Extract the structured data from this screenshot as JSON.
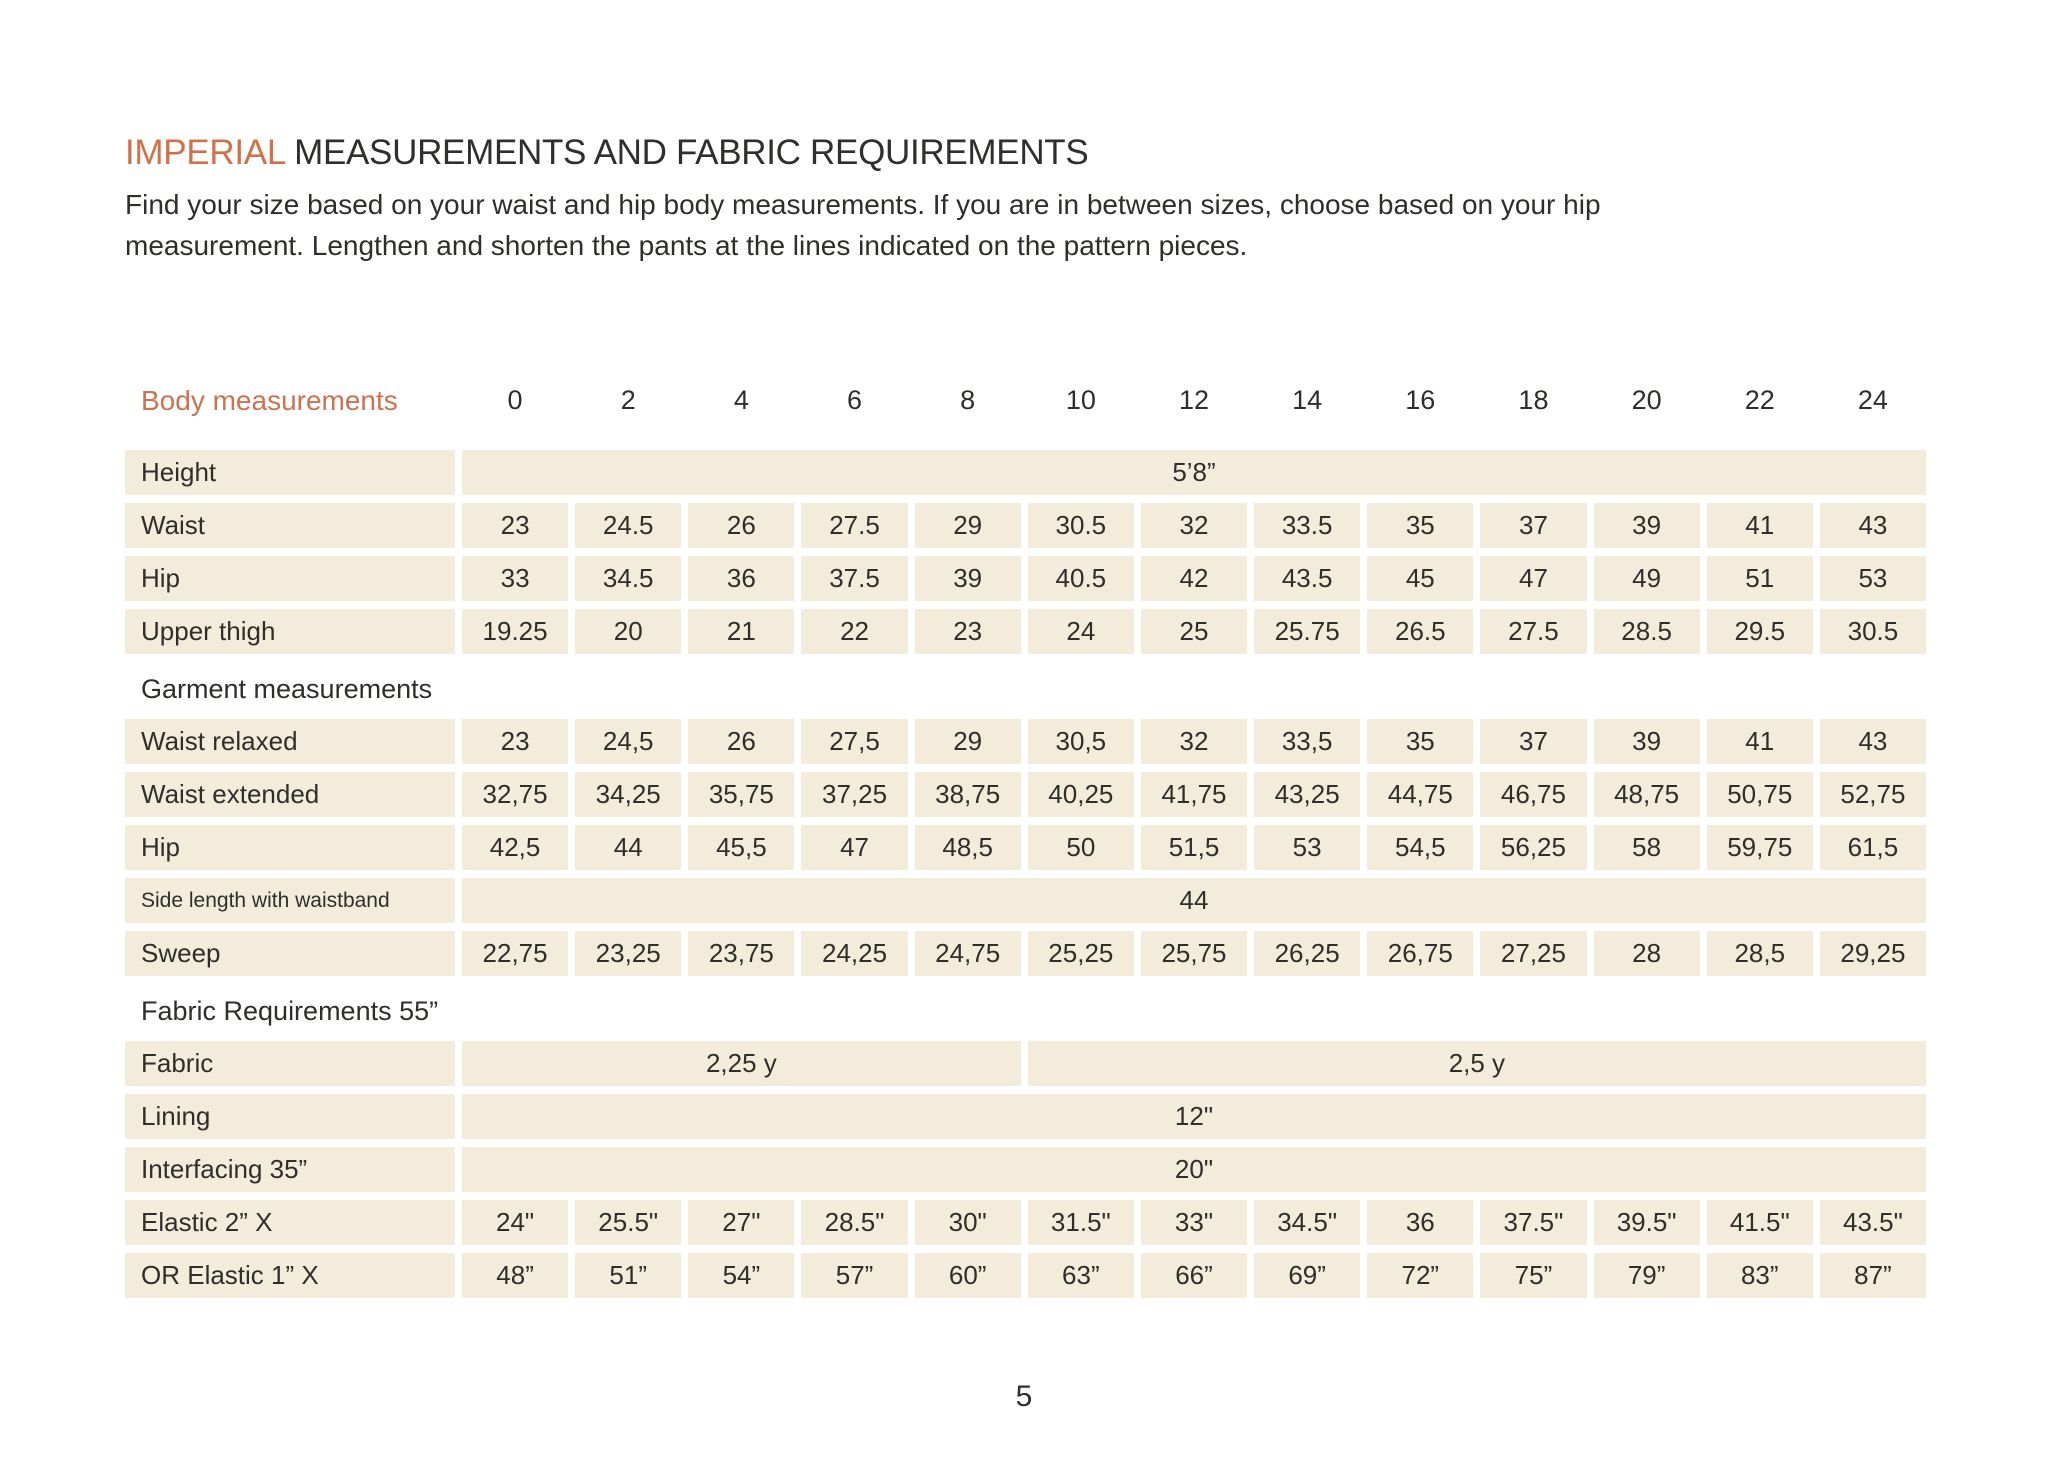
{
  "page": {
    "title_highlight": "IMPERIAL",
    "title_rest": " MEASUREMENTS AND FABRIC REQUIREMENTS",
    "intro_lines": [
      "Find your size based on your waist and hip body measurements. If you are in between sizes, choose based on your hip",
      "measurement. Lengthen and shorten the pants at the lines indicated on the pattern pieces."
    ],
    "page_number": "5"
  },
  "colors": {
    "accent_orange": "#d0714a",
    "cell_beige": "#f3ecda",
    "text_dark": "#2f2e2b"
  },
  "table": {
    "header_label": "Body measurements",
    "sizes": [
      "0",
      "2",
      "4",
      "6",
      "8",
      "10",
      "12",
      "14",
      "16",
      "18",
      "20",
      "22",
      "24"
    ],
    "rows": [
      {
        "type": "span",
        "label": "Height",
        "value": "5’8”"
      },
      {
        "type": "cells",
        "label": "Waist",
        "values": [
          "23",
          "24.5",
          "26",
          "27.5",
          "29",
          "30.5",
          "32",
          "33.5",
          "35",
          "37",
          "39",
          "41",
          "43"
        ]
      },
      {
        "type": "cells",
        "label": "Hip",
        "values": [
          "33",
          "34.5",
          "36",
          "37.5",
          "39",
          "40.5",
          "42",
          "43.5",
          "45",
          "47",
          "49",
          "51",
          "53"
        ]
      },
      {
        "type": "cells",
        "label": "Upper thigh",
        "values": [
          "19.25",
          "20",
          "21",
          "22",
          "23",
          "24",
          "25",
          "25.75",
          "26.5",
          "27.5",
          "28.5",
          "29.5",
          "30.5"
        ]
      },
      {
        "type": "section",
        "label": "Garment measurements"
      },
      {
        "type": "cells",
        "label": "Waist relaxed",
        "values": [
          "23",
          "24,5",
          "26",
          "27,5",
          "29",
          "30,5",
          "32",
          "33,5",
          "35",
          "37",
          "39",
          "41",
          "43"
        ]
      },
      {
        "type": "cells",
        "label": "Waist extended",
        "values": [
          "32,75",
          "34,25",
          "35,75",
          "37,25",
          "38,75",
          "40,25",
          "41,75",
          "43,25",
          "44,75",
          "46,75",
          "48,75",
          "50,75",
          "52,75"
        ]
      },
      {
        "type": "cells",
        "label": "Hip",
        "values": [
          "42,5",
          "44",
          "45,5",
          "47",
          "48,5",
          "50",
          "51,5",
          "53",
          "54,5",
          "56,25",
          "58",
          "59,75",
          "61,5"
        ]
      },
      {
        "type": "span",
        "label": "Side length with waistband",
        "value": "44",
        "small_label": true
      },
      {
        "type": "cells",
        "label": "Sweep",
        "values": [
          "22,75",
          "23,25",
          "23,75",
          "24,25",
          "24,75",
          "25,25",
          "25,75",
          "26,25",
          "26,75",
          "27,25",
          "28",
          "28,5",
          "29,25"
        ]
      },
      {
        "type": "section",
        "label": "Fabric Requirements 55”"
      },
      {
        "type": "split",
        "label": "Fabric",
        "segments": [
          {
            "value": "2,25 y",
            "span": 5
          },
          {
            "value": "2,5 y",
            "span": 8
          }
        ]
      },
      {
        "type": "span",
        "label": "Lining",
        "value": "12\""
      },
      {
        "type": "span",
        "label": "Interfacing 35”",
        "value": "20\""
      },
      {
        "type": "cells",
        "label": "Elastic 2” X",
        "values": [
          "24\"",
          "25.5\"",
          "27\"",
          "28.5\"",
          "30\"",
          "31.5\"",
          "33\"",
          "34.5\"",
          "36",
          "37.5\"",
          "39.5\"",
          "41.5\"",
          "43.5\""
        ]
      },
      {
        "type": "cells",
        "label": "OR Elastic 1” X",
        "values": [
          "48”",
          "51”",
          "54”",
          "57”",
          "60”",
          "63”",
          "66”",
          "69”",
          "72”",
          "75”",
          "79”",
          "83”",
          "87”"
        ]
      }
    ]
  }
}
